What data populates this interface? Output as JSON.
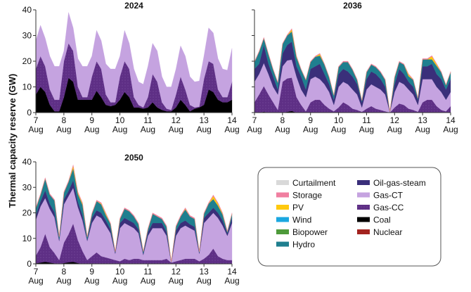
{
  "chart_data": {
    "type": "area",
    "stacked": true,
    "ylabel": "Thermal capacity reserve (GW)",
    "ylim": [
      0,
      40
    ],
    "yticks": [
      "0",
      "10",
      "20",
      "30",
      "40"
    ],
    "xlim": [
      "7 Aug",
      "14 Aug"
    ],
    "xticks": [
      {
        "day": "7",
        "month": "Aug"
      },
      {
        "day": "8",
        "month": "Aug"
      },
      {
        "day": "9",
        "month": "Aug"
      },
      {
        "day": "10",
        "month": "Aug"
      },
      {
        "day": "11",
        "month": "Aug"
      },
      {
        "day": "12",
        "month": "Aug"
      },
      {
        "day": "13",
        "month": "Aug"
      },
      {
        "day": "14",
        "month": "Aug"
      }
    ],
    "time_step_hours": 4,
    "grid": false,
    "legend_placement": "bottom-right",
    "legend": [
      {
        "name": "Curtailment",
        "color": "#d9d9d9"
      },
      {
        "name": "Storage",
        "color": "#f07fa0"
      },
      {
        "name": "PV",
        "color": "#ffc90e"
      },
      {
        "name": "Wind",
        "color": "#1ba7e0"
      },
      {
        "name": "Biopower",
        "color": "#4e9a3a"
      },
      {
        "name": "Hydro",
        "color": "#1f7f8f"
      },
      {
        "name": "Oil-gas-steam",
        "color": "#3a2f7a"
      },
      {
        "name": "Gas-CT",
        "color": "#c5a3e0"
      },
      {
        "name": "Gas-CC",
        "color": "#5e2f85"
      },
      {
        "name": "Coal",
        "color": "#000000"
      },
      {
        "name": "Nuclear",
        "color": "#a3231f"
      }
    ],
    "panels": [
      {
        "title": "2024",
        "show_ytick_labels": true,
        "series": [
          {
            "name": "Coal",
            "values": [
              7,
              10,
              8,
              3,
              0.5,
              0.5,
              6,
              13.5,
              12,
              5,
              5,
              5,
              5,
              8.5,
              6,
              3,
              2.5,
              3,
              5,
              8,
              6,
              2,
              2,
              1.5,
              2,
              4,
              2,
              1,
              0.5,
              0.5,
              2,
              5,
              3,
              0.5,
              1.5,
              2,
              3,
              9,
              8,
              5,
              4,
              4,
              5
            ]
          },
          {
            "name": "Gas-CC",
            "values": [
              10,
              12,
              10,
              6,
              4.5,
              4.5,
              14,
              13.5,
              12,
              5,
              1,
              1,
              9,
              11.5,
              11,
              4,
              1.5,
              1,
              9,
              12,
              11,
              4,
              1,
              0.5,
              4,
              11,
              10,
              3,
              1,
              0.5,
              5,
              9,
              6,
              2.5,
              0.5,
              0.3,
              10,
              11,
              11,
              4,
              2,
              2,
              7
            ]
          },
          {
            "name": "Gas-CT",
            "values": [
              11,
              12,
              11,
              13,
              13,
              13,
              4,
              12,
              9,
              11,
              12,
              12,
              8,
              12,
              11,
              12,
              13,
              13,
              8,
              12,
              10,
              11,
              9,
              9,
              12,
              12,
              12,
              10,
              8.5,
              9,
              10,
              12,
              13,
              11,
              10,
              10,
              9,
              13,
              12,
              12,
              11,
              10.5,
              13
            ]
          }
        ]
      },
      {
        "title": "2036",
        "show_ytick_labels": false,
        "series": [
          {
            "name": "Coal",
            "values": [
              0,
              0,
              0.3,
              0,
              0,
              0,
              0,
              0.3,
              0.6,
              0,
              0,
              0,
              0,
              0,
              0,
              0,
              0,
              0,
              0,
              0,
              0,
              0,
              0,
              0,
              0,
              0,
              0,
              0,
              0,
              0,
              0,
              0,
              0,
              0,
              0,
              0,
              0,
              0,
              0,
              0,
              0,
              0,
              0
            ]
          },
          {
            "name": "Gas-CC",
            "values": [
              4,
              7,
              10,
              7,
              4,
              1,
              12,
              13,
              13,
              6,
              3,
              0.5,
              4,
              5,
              5,
              3,
              1.5,
              0.5,
              2,
              4,
              3,
              1.5,
              1,
              0.3,
              1.5,
              2.5,
              1.5,
              1,
              0.5,
              0,
              2,
              3.5,
              3,
              1.5,
              1,
              0.3,
              4,
              5,
              5,
              2.5,
              1,
              0.5,
              2.5
            ]
          },
          {
            "name": "Gas-CT",
            "values": [
              8,
              8,
              9,
              8,
              6,
              6,
              6,
              7,
              7,
              8,
              6,
              5.5,
              9,
              9,
              8,
              8,
              6.5,
              2.5,
              8,
              8,
              8,
              7.5,
              6,
              1.7,
              7.5,
              8.5,
              8.5,
              8,
              6.5,
              0.2,
              6,
              8.5,
              8,
              7.5,
              6,
              2.7,
              9,
              8,
              8,
              7.5,
              7,
              4.5,
              5.5
            ]
          },
          {
            "name": "Oil-gas-steam",
            "values": [
              5,
              4,
              7,
              4,
              4,
              2,
              5,
              6,
              7,
              4,
              5,
              3,
              4,
              4,
              6,
              4,
              3,
              2,
              5,
              5,
              5,
              5,
              4,
              2,
              4,
              5,
              5,
              4,
              3,
              0.1,
              3,
              5,
              4,
              3,
              3,
              2,
              5,
              5,
              6,
              5,
              5,
              4,
              5
            ]
          },
          {
            "name": "Hydro",
            "values": [
              2.7,
              4.7,
              2.7,
              3.7,
              2.7,
              2.7,
              3.7,
              3.7,
              4,
              3.5,
              2.7,
              3.7,
              2.7,
              3.7,
              3.2,
              3.7,
              2.7,
              1.7,
              2.7,
              2.7,
              3.7,
              2.7,
              1.7,
              0.7,
              2.7,
              2.7,
              2.7,
              2.7,
              2.7,
              0.1,
              2.7,
              2.7,
              3.7,
              2.2,
              2.7,
              0.7,
              2.7,
              2.7,
              1.7,
              3.2,
              2.7,
              1.7,
              2.7
            ]
          },
          {
            "name": "PV",
            "values": [
              0,
              0,
              0,
              0,
              0,
              0,
              0,
              0,
              0.8,
              0.3,
              0,
              0,
              0,
              0,
              0.6,
              0,
              0,
              0,
              0,
              0,
              0,
              0,
              0,
              0,
              0,
              0,
              0,
              0,
              0,
              0,
              0,
              0,
              0,
              0.6,
              0,
              0,
              0,
              0,
              1.2,
              0.6,
              0,
              0,
              0
            ]
          },
          {
            "name": "Storage",
            "values": [
              0.3,
              0.3,
              0.3,
              0.3,
              0.3,
              0.2,
              0.3,
              0.3,
              0.3,
              0.3,
              0.3,
              0.2,
              0.3,
              0.3,
              0.3,
              0.3,
              0.3,
              0.1,
              0.3,
              0.3,
              0.3,
              0.3,
              0.3,
              0.1,
              0.3,
              0.3,
              0.3,
              0.3,
              0.3,
              0,
              0.3,
              0.3,
              0.3,
              0.3,
              0.3,
              0.1,
              0.3,
              0.3,
              0.3,
              0.3,
              0.3,
              0.2,
              0.3
            ]
          }
        ]
      },
      {
        "title": "2050",
        "show_ytick_labels": true,
        "series": [
          {
            "name": "Coal",
            "values": [
              0.2,
              0.5,
              0.8,
              0.5,
              0.2,
              0,
              0.3,
              0.6,
              0.8,
              0.3,
              0,
              0,
              0,
              0,
              0,
              0,
              0,
              0,
              0,
              0,
              0,
              0,
              0,
              0,
              0,
              0,
              0,
              0,
              0,
              0,
              0,
              0,
              0,
              0,
              0,
              0,
              0,
              0,
              0,
              0,
              0,
              0,
              0
            ]
          },
          {
            "name": "Gas-CC",
            "values": [
              3,
              6,
              11,
              6,
              4,
              1.5,
              8,
              11,
              15,
              9,
              5,
              1.5,
              3,
              4.5,
              3,
              2.5,
              2,
              1.5,
              1,
              2,
              1.5,
              2,
              2,
              1.5,
              1.5,
              1.5,
              1.5,
              1.5,
              2,
              0.5,
              1,
              1.5,
              2,
              2,
              2,
              1,
              2,
              3.5,
              6,
              3,
              2,
              1.5,
              1.5
            ]
          },
          {
            "name": "Gas-CT",
            "values": [
              14,
              16,
              14,
              15,
              14,
              7.5,
              15,
              15,
              14,
              13,
              12,
              7.5,
              13,
              14.5,
              15,
              12.5,
              10,
              2.5,
              13,
              14,
              13.5,
              12,
              10,
              2,
              9.5,
              12.5,
              12.5,
              12.5,
              9,
              0,
              10,
              12.5,
              13,
              12,
              11,
              3,
              14,
              14.5,
              14,
              15,
              13,
              9.5,
              14.5
            ]
          },
          {
            "name": "Oil-gas-steam",
            "values": [
              2,
              2,
              3,
              2,
              2,
              0.5,
              2,
              2,
              3,
              2,
              2,
              0.5,
              2,
              2,
              2,
              2,
              1.5,
              0.5,
              2,
              2,
              2,
              2,
              1.5,
              0.5,
              1.5,
              2,
              2,
              2,
              1.5,
              0.2,
              2,
              2,
              2,
              1.5,
              1.5,
              0.5,
              2,
              2,
              2,
              2,
              2,
              1,
              2
            ]
          },
          {
            "name": "Hydro",
            "values": [
              2.6,
              2.6,
              4.6,
              3.6,
              4.6,
              1.1,
              2.6,
              3.6,
              4.6,
              3.1,
              4.1,
              1.1,
              1.6,
              3.6,
              3.3,
              2.1,
              2.1,
              0.3,
              1.6,
              3.6,
              3.6,
              2.6,
              2.1,
              0.8,
              1.1,
              3.6,
              2.6,
              1.6,
              2.1,
              0.1,
              1.6,
              2.6,
              4.3,
              3.1,
              3.1,
              0.3,
              1.6,
              3.6,
              3.4,
              2.8,
              2.3,
              0.6,
              1.6
            ]
          },
          {
            "name": "PV",
            "values": [
              0,
              0,
              0,
              0,
              0,
              0,
              0,
              0,
              1,
              0.5,
              0.5,
              0,
              0,
              0,
              0.3,
              0.5,
              0,
              0,
              0,
              0,
              0,
              0,
              0,
              0,
              0,
              0,
              0,
              0,
              0,
              0,
              0,
              0,
              0.3,
              0,
              0,
              0,
              0,
              0,
              1.2,
              0.8,
              0.3,
              0,
              0
            ]
          },
          {
            "name": "Storage",
            "values": [
              0.4,
              0.4,
              0.4,
              0.4,
              0.4,
              0.4,
              0.4,
              0.4,
              0.4,
              0.4,
              0.4,
              0.4,
              0.4,
              0.4,
              0.4,
              0.4,
              0.4,
              0.2,
              0.4,
              0.4,
              0.4,
              0.4,
              0.4,
              0.2,
              0.4,
              0.4,
              0.4,
              0.4,
              0.4,
              0.2,
              0.4,
              0.4,
              0.4,
              0.4,
              0.4,
              0.2,
              0.4,
              0.4,
              0.4,
              0.4,
              0.4,
              0.4,
              0.4
            ]
          }
        ]
      }
    ]
  }
}
